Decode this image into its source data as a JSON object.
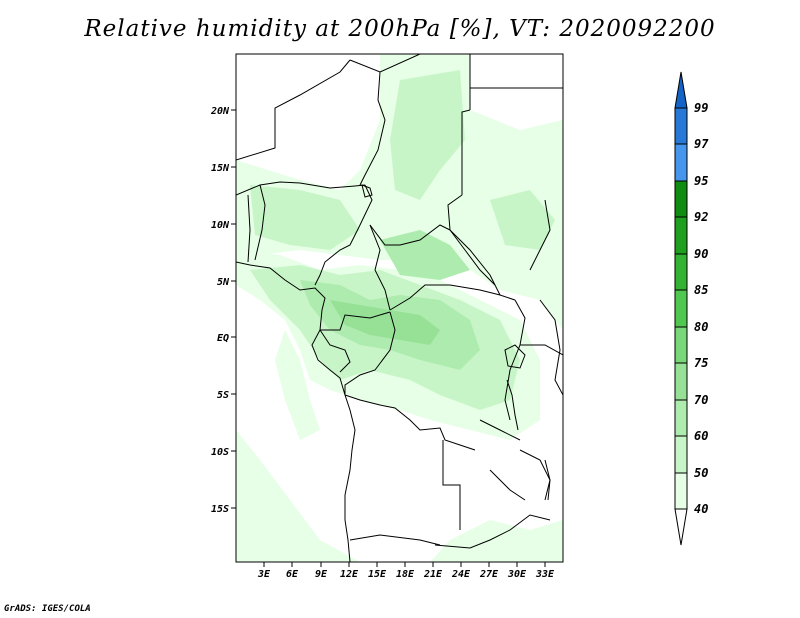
{
  "title": "Relative humidity at 200hPa [%], VT: 2020092200",
  "credit": "GrADS: IGES/COLA",
  "map": {
    "lat_labels": [
      "20N",
      "15N",
      "10N",
      "5N",
      "EQ",
      "5S",
      "10S",
      "15S"
    ],
    "lon_labels": [
      "3E",
      "6E",
      "9E",
      "12E",
      "15E",
      "18E",
      "21E",
      "24E",
      "27E",
      "30E",
      "33E"
    ]
  },
  "colorbar": {
    "labels": [
      "99",
      "97",
      "95",
      "92",
      "90",
      "85",
      "80",
      "75",
      "70",
      "60",
      "50",
      "40"
    ],
    "colors": {
      "c40_50": "#e6ffe6",
      "c50_60": "#c8f5c8",
      "c60_70": "#aeebae",
      "c70_75": "#96e196",
      "c75_80": "#78d778",
      "c80_85": "#50c850",
      "c85_90": "#32b432",
      "c90_92": "#1ea01e",
      "c92_95": "#108c10",
      "c95_97": "#4696ee",
      "c97_99": "#2878d8",
      "c99": "#1464c8"
    }
  }
}
